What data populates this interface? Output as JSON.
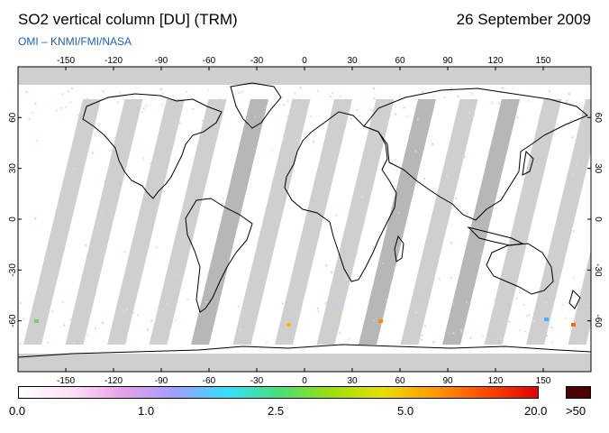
{
  "title": "SO2 vertical column [DU] (TRM)",
  "date": "26 September 2009",
  "source": "OMI  –  KNMI/FMI/NASA",
  "map": {
    "projection": "equirectangular",
    "longitude_ticks": [
      "-150",
      "-120",
      "-90",
      "-60",
      "-30",
      "0",
      "30",
      "60",
      "90",
      "120",
      "150"
    ],
    "latitude_ticks": [
      "60",
      "30",
      "0",
      "-30",
      "-60"
    ],
    "ocean_color": "#ffffff",
    "coastline_color": "#000000",
    "data_gap_color": "#cfcfcf",
    "land_color": "#ffffff"
  },
  "colorbar": {
    "labels": [
      "0.0",
      "1.0",
      "2.5",
      "5.0",
      "20.0"
    ],
    "over_label": ">50",
    "over_color": "#4a0000",
    "stops": [
      "#ffffff",
      "#ffe0f6",
      "#e8a0e8",
      "#9f9fff",
      "#33e0ff",
      "#44e07a",
      "#9ae00a",
      "#e8e000",
      "#ff9a00",
      "#ff4a00",
      "#e00000"
    ]
  }
}
